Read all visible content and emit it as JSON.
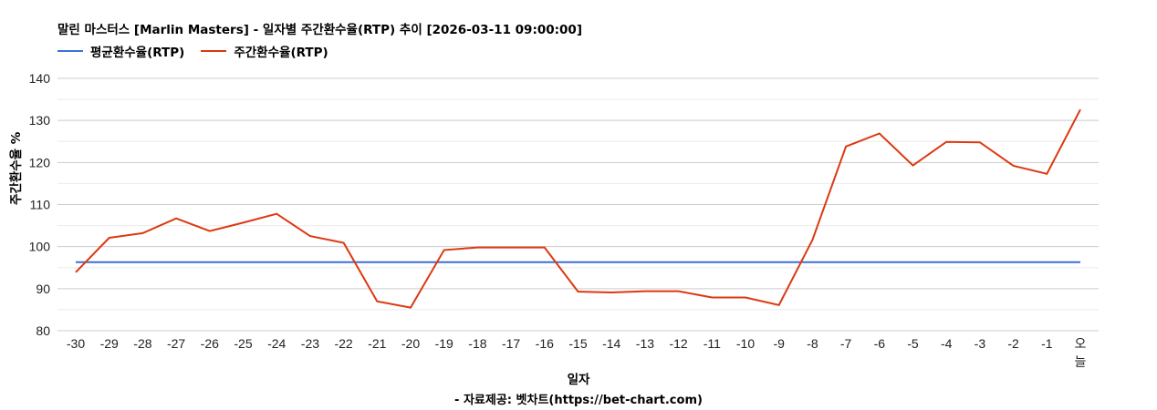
{
  "title": "말린 마스터스 [Marlin Masters] - 일자별 주간환수율(RTP) 추이 [2026-03-11 09:00:00]",
  "legend": [
    {
      "label": "평균환수율(RTP)",
      "color": "#3e6fd8"
    },
    {
      "label": "주간환수율(RTP)",
      "color": "#dc3912"
    }
  ],
  "footer": {
    "xlabel": "일자",
    "source": "- 자료제공: 벳차트(https://bet-chart.com)"
  },
  "chart_data": {
    "type": "line",
    "title": "말린 마스터스 [Marlin Masters] - 일자별 주간환수율(RTP) 추이 [2026-03-11 09:00:00]",
    "xlabel": "일자",
    "ylabel": "주간환수율 %",
    "ylim": [
      80,
      140
    ],
    "yticks": [
      80,
      90,
      100,
      110,
      120,
      130,
      140
    ],
    "grid": true,
    "legend_position": "top-left",
    "categories": [
      "-30",
      "-29",
      "-28",
      "-27",
      "-26",
      "-25",
      "-24",
      "-23",
      "-22",
      "-21",
      "-20",
      "-19",
      "-18",
      "-17",
      "-16",
      "-15",
      "-14",
      "-13",
      "-12",
      "-11",
      "-10",
      "-9",
      "-8",
      "-7",
      "-6",
      "-5",
      "-4",
      "-3",
      "-2",
      "-1",
      "오늘"
    ],
    "series": [
      {
        "name": "평균환수율(RTP)",
        "color": "#3e6fd8",
        "values": [
          96.3,
          96.3,
          96.3,
          96.3,
          96.3,
          96.3,
          96.3,
          96.3,
          96.3,
          96.3,
          96.3,
          96.3,
          96.3,
          96.3,
          96.3,
          96.3,
          96.3,
          96.3,
          96.3,
          96.3,
          96.3,
          96.3,
          96.3,
          96.3,
          96.3,
          96.3,
          96.3,
          96.3,
          96.3,
          96.3,
          96.3
        ]
      },
      {
        "name": "주간환수율(RTP)",
        "color": "#dc3912",
        "values": [
          93.9,
          102.1,
          103.2,
          106.7,
          103.7,
          105.7,
          107.8,
          102.5,
          100.9,
          87.0,
          85.5,
          99.2,
          99.8,
          99.8,
          99.8,
          89.3,
          89.1,
          89.4,
          89.4,
          87.9,
          87.9,
          86.1,
          101.6,
          123.8,
          126.9,
          119.3,
          124.9,
          124.8,
          119.2,
          117.3,
          132.6
        ]
      }
    ]
  }
}
